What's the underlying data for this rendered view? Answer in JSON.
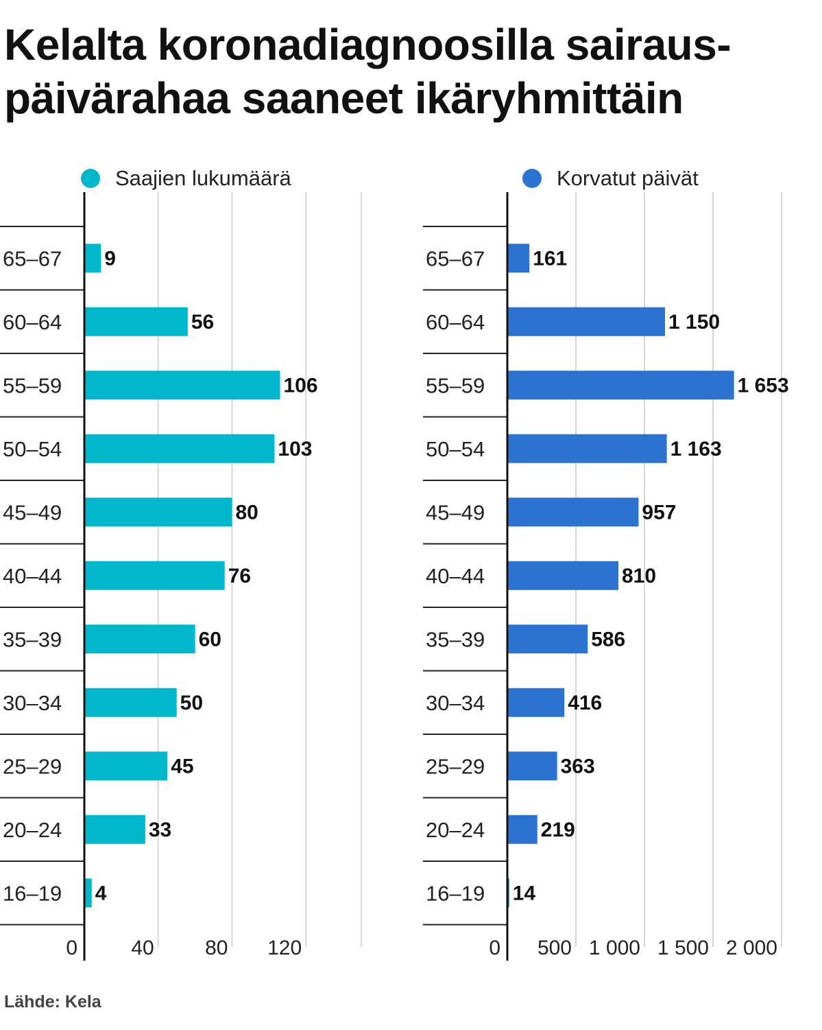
{
  "title_lines": [
    "Kelalta koronadiagnoosilla sairaus-",
    "päivärahaa saaneet ikäryhmittäin"
  ],
  "source": "Lähde: Kela",
  "colors": {
    "series_1": "#00b7cc",
    "series_2": "#2b72d1",
    "grid": "#d6d6d6",
    "axis": "#111111"
  },
  "chart_data": [
    {
      "type": "bar",
      "orientation": "horizontal",
      "legend": "Saajien lukumäärä",
      "categories": [
        "65–67",
        "60–64",
        "55–59",
        "50–54",
        "45–49",
        "40–44",
        "35–39",
        "30–34",
        "25–29",
        "20–24",
        "16–19"
      ],
      "values": [
        9,
        56,
        106,
        103,
        80,
        76,
        60,
        50,
        45,
        33,
        4
      ],
      "value_labels": [
        "9",
        "56",
        "106",
        "103",
        "80",
        "76",
        "60",
        "50",
        "45",
        "33",
        "4"
      ],
      "xlim": [
        0,
        150
      ],
      "ticks": [
        0,
        40,
        80,
        120,
        150
      ],
      "tick_labels": [
        "0",
        "40",
        "80",
        "120",
        ""
      ],
      "grid": true,
      "legend_position": "top"
    },
    {
      "type": "bar",
      "orientation": "horizontal",
      "legend": "Korvatut päivät",
      "categories": [
        "65–67",
        "60–64",
        "55–59",
        "50–54",
        "45–49",
        "40–44",
        "35–39",
        "30–34",
        "25–29",
        "20–24",
        "16–19"
      ],
      "values": [
        161,
        1150,
        1653,
        1163,
        957,
        810,
        586,
        416,
        363,
        219,
        14
      ],
      "value_labels": [
        "161",
        "1 150",
        "1 653",
        "1 163",
        "957",
        "810",
        "586",
        "416",
        "363",
        "219",
        "14"
      ],
      "xlim": [
        0,
        2000
      ],
      "ticks": [
        0,
        500,
        1000,
        1500,
        2000
      ],
      "tick_labels": [
        "0",
        "500",
        "1 000",
        "1 500",
        "2 000"
      ],
      "grid": true,
      "legend_position": "top"
    }
  ]
}
